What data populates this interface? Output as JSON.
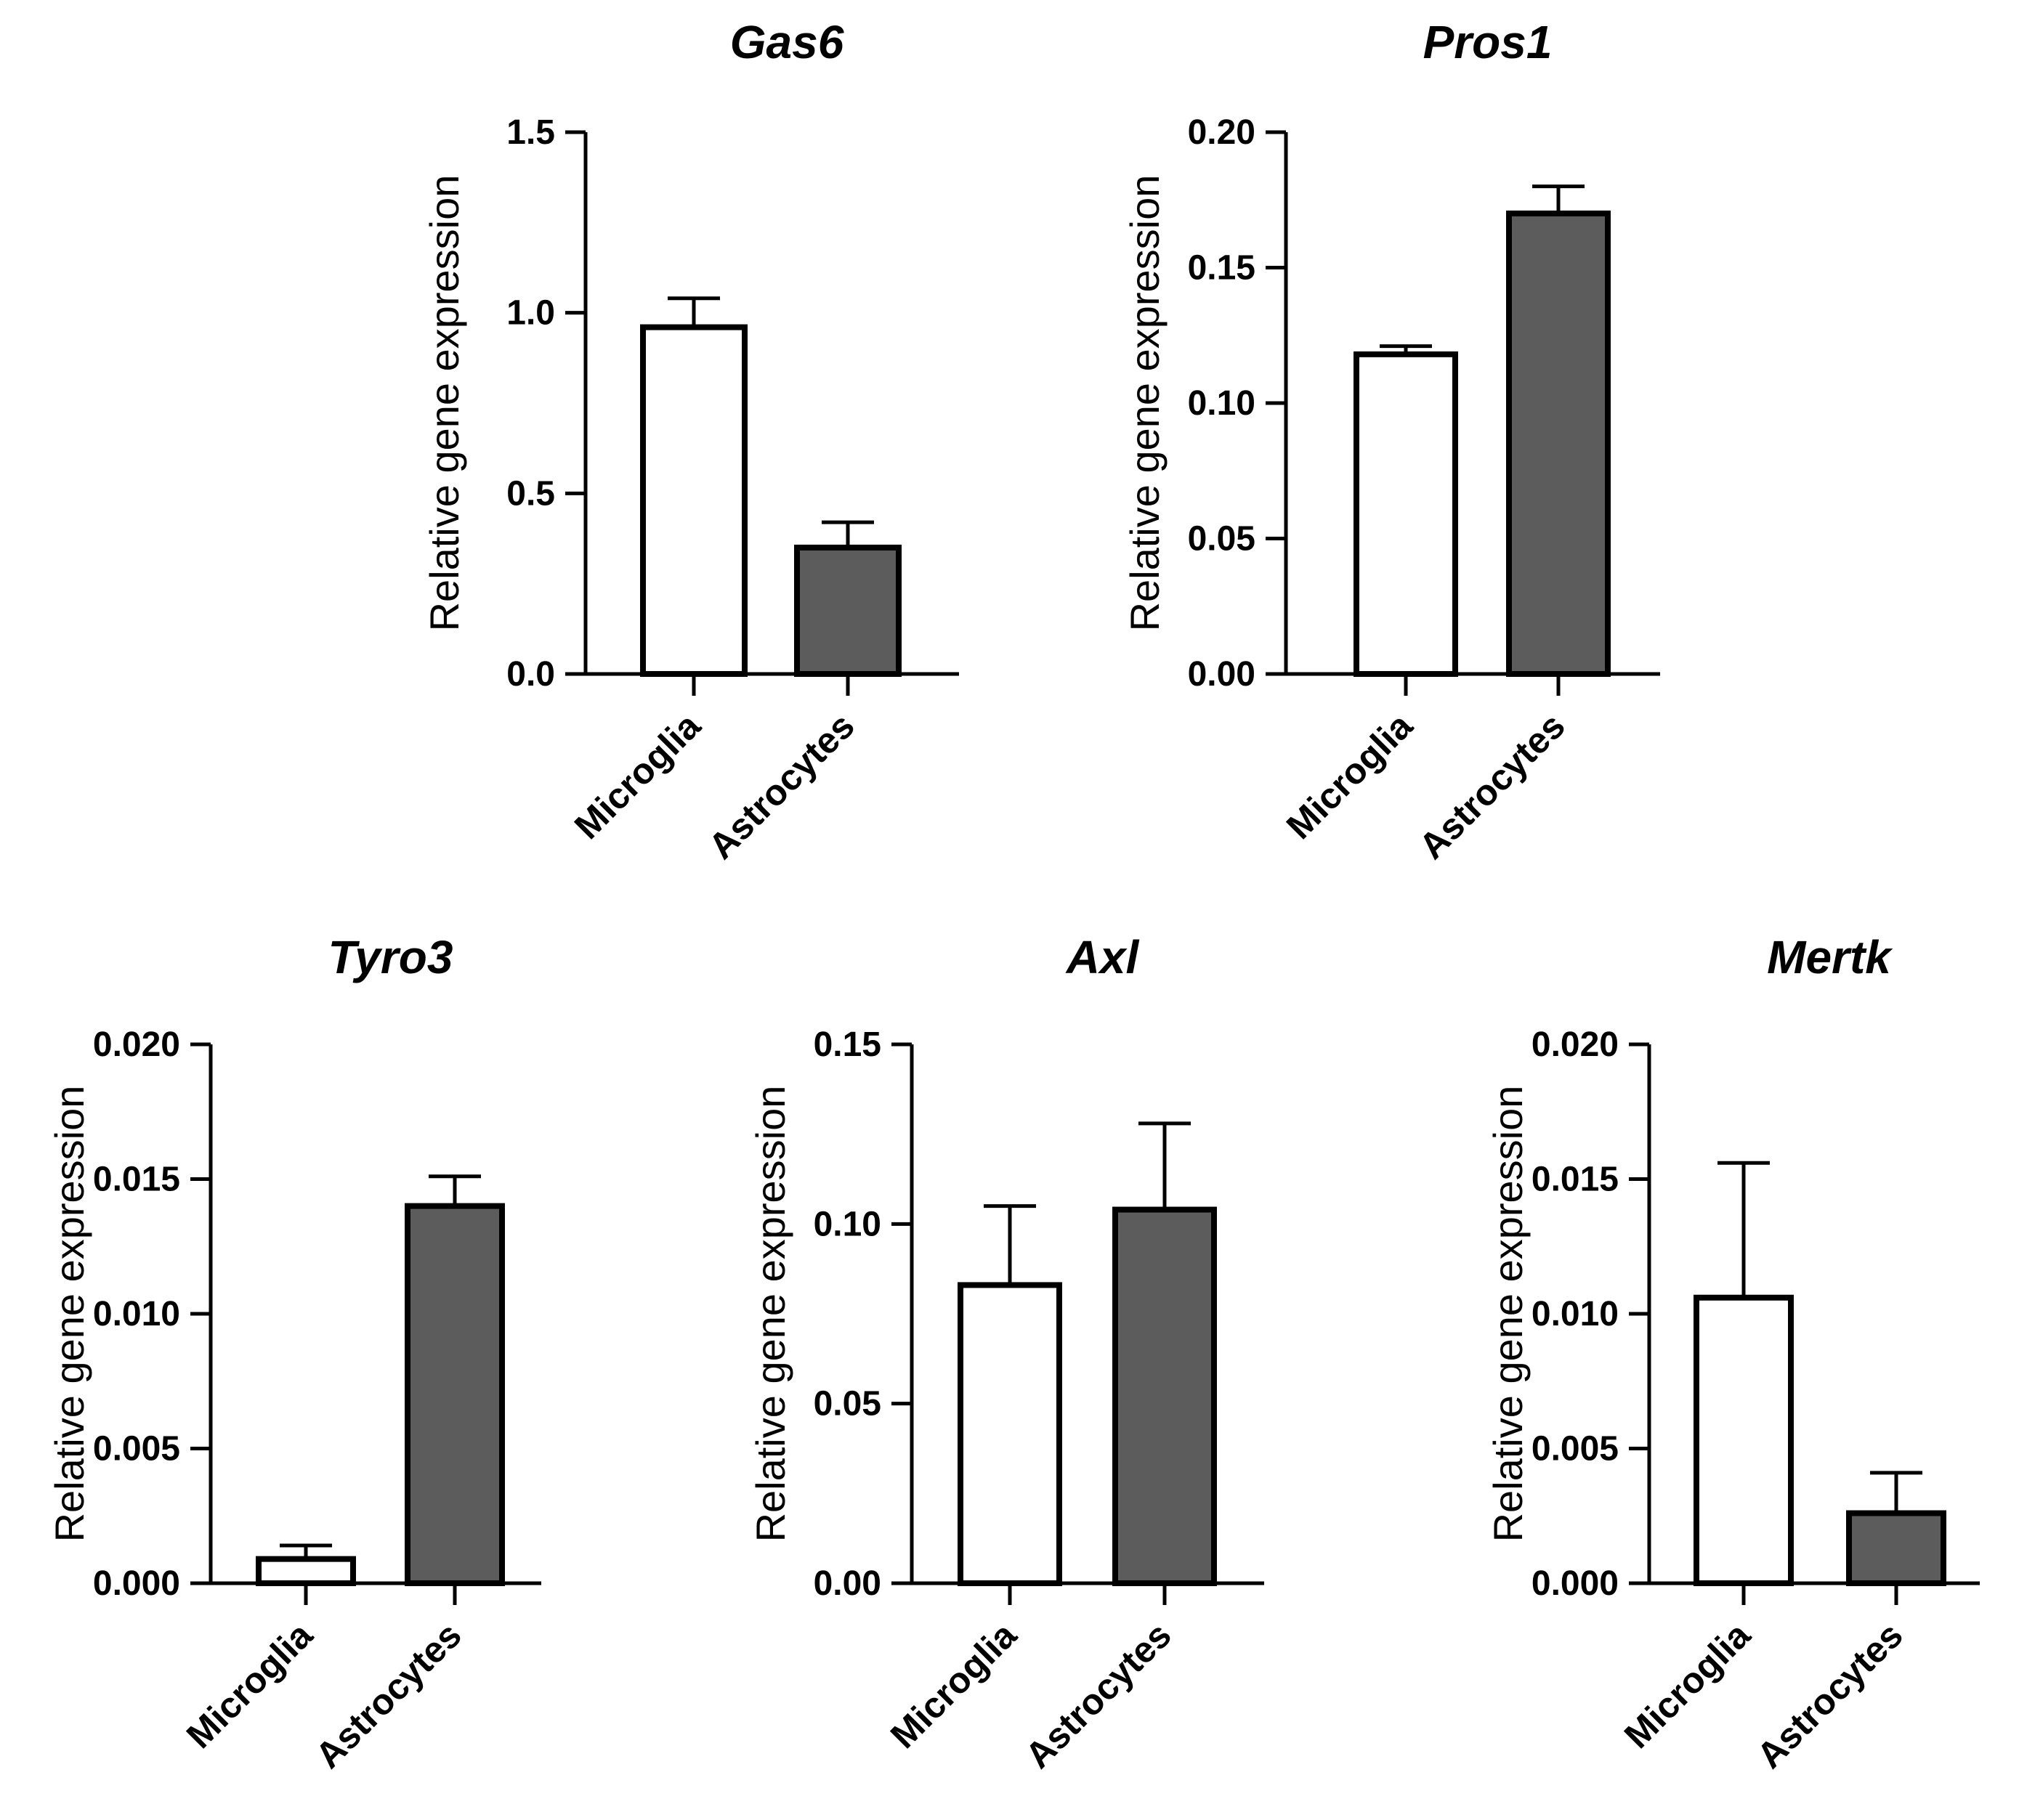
{
  "chart_data": [
    {
      "type": "bar",
      "title": "Gas6",
      "ylabel": "Relative gene expression",
      "xlabel": "",
      "categories": [
        "Microglia",
        "Astrocytes"
      ],
      "values": [
        0.96,
        0.35
      ],
      "error_plus": [
        0.08,
        0.07
      ],
      "ylim": [
        0,
        1.5
      ],
      "yticks": [
        "0.0",
        "0.5",
        "1.0",
        "1.5"
      ],
      "colors": [
        "#ffffff",
        "#5c5c5c"
      ]
    },
    {
      "type": "bar",
      "title": "Pros1",
      "ylabel": "Relative gene expression",
      "xlabel": "",
      "categories": [
        "Microglia",
        "Astrocytes"
      ],
      "values": [
        0.118,
        0.17
      ],
      "error_plus": [
        0.003,
        0.01
      ],
      "ylim": [
        0,
        0.2
      ],
      "yticks": [
        "0.00",
        "0.05",
        "0.10",
        "0.15",
        "0.20"
      ],
      "colors": [
        "#ffffff",
        "#5c5c5c"
      ]
    },
    {
      "type": "bar",
      "title": "Tyro3",
      "ylabel": "Relative gene expression",
      "xlabel": "",
      "categories": [
        "Microglia",
        "Astrocytes"
      ],
      "values": [
        0.0009,
        0.014
      ],
      "error_plus": [
        0.0005,
        0.0011
      ],
      "ylim": [
        0,
        0.02
      ],
      "yticks": [
        "0.000",
        "0.005",
        "0.010",
        "0.015",
        "0.020"
      ],
      "colors": [
        "#ffffff",
        "#5c5c5c"
      ]
    },
    {
      "type": "bar",
      "title": "Axl",
      "ylabel": "Relative gene expression",
      "xlabel": "",
      "categories": [
        "Microglia",
        "Astrocytes"
      ],
      "values": [
        0.083,
        0.104
      ],
      "error_plus": [
        0.022,
        0.024
      ],
      "ylim": [
        0,
        0.15
      ],
      "yticks": [
        "0.00",
        "0.05",
        "0.10",
        "0.15"
      ],
      "colors": [
        "#ffffff",
        "#5c5c5c"
      ]
    },
    {
      "type": "bar",
      "title": "Mertk",
      "ylabel": "Relative gene expression",
      "xlabel": "",
      "categories": [
        "Microglia",
        "Astrocytes"
      ],
      "values": [
        0.0106,
        0.0026
      ],
      "error_plus": [
        0.005,
        0.0015
      ],
      "ylim": [
        0,
        0.02
      ],
      "yticks": [
        "0.000",
        "0.005",
        "0.010",
        "0.015",
        "0.020"
      ],
      "colors": [
        "#ffffff",
        "#5c5c5c"
      ]
    }
  ]
}
